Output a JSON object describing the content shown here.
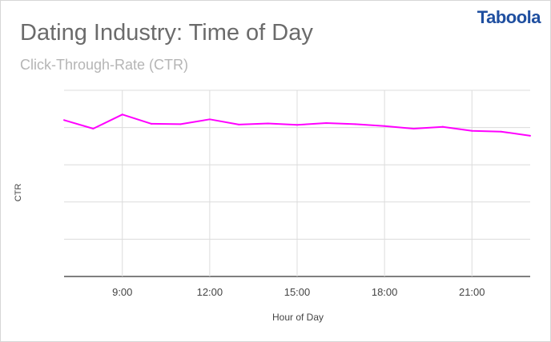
{
  "logo": {
    "text": "Taboola"
  },
  "chart_data": {
    "type": "line",
    "title": "Dating Industry: Time of Day",
    "subtitle": "Click-Through-Rate (CTR)",
    "xlabel": "Hour of Day",
    "ylabel": "CTR",
    "xlim": [
      7,
      23
    ],
    "ylim": [
      0,
      5
    ],
    "grid": true,
    "x_ticks": [
      {
        "value": 9,
        "label": "9:00"
      },
      {
        "value": 12,
        "label": "12:00"
      },
      {
        "value": 15,
        "label": "15:00"
      },
      {
        "value": 18,
        "label": "18:00"
      },
      {
        "value": 21,
        "label": "21:00"
      }
    ],
    "y_gridlines": [
      0,
      1,
      2,
      3,
      4,
      5
    ],
    "series": [
      {
        "color": "#ff00ff",
        "x": [
          7,
          8,
          9,
          10,
          11,
          12,
          13,
          14,
          15,
          16,
          17,
          18,
          19,
          20,
          21,
          22,
          23
        ],
        "y": [
          4.2,
          3.97,
          4.35,
          4.1,
          4.09,
          4.22,
          4.08,
          4.11,
          4.07,
          4.12,
          4.09,
          4.04,
          3.97,
          4.02,
          3.91,
          3.89,
          3.78
        ]
      }
    ]
  }
}
